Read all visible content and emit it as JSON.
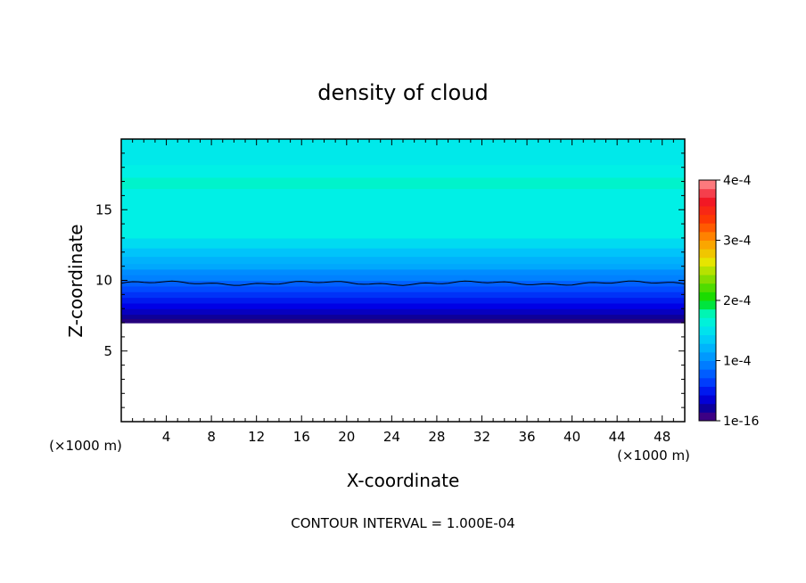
{
  "chart_data": {
    "type": "heatmap",
    "title": "density of cloud",
    "xlabel": "X-coordinate",
    "ylabel": "Z-coordinate",
    "x_unit": "(×1000 m)",
    "y_unit": "(×1000 m)",
    "footer": "CONTOUR INTERVAL = 1.000E-04",
    "xlim": [
      0,
      50
    ],
    "ylim": [
      0,
      20
    ],
    "x_ticks": [
      "4",
      "8",
      "12",
      "16",
      "20",
      "24",
      "28",
      "32",
      "36",
      "40",
      "44",
      "48"
    ],
    "x_tick_values": [
      4,
      8,
      12,
      16,
      20,
      24,
      28,
      32,
      36,
      40,
      44,
      48
    ],
    "y_ticks": [
      "5",
      "10",
      "15"
    ],
    "y_tick_values": [
      5,
      10,
      15
    ],
    "colorbar": {
      "min": 1e-16,
      "max": 0.0004,
      "tick_labels": [
        "1e-16",
        "1e-4",
        "2e-4",
        "3e-4",
        "4e-4"
      ],
      "tick_values": [
        0,
        0.0001,
        0.0002,
        0.0003,
        0.0004
      ]
    },
    "cloud_base_z": 7.0,
    "contour_line": {
      "level": 0.0001,
      "z": 9.8
    },
    "vertical_profile": {
      "z": [
        7.0,
        7.3,
        7.6,
        8.0,
        8.4,
        8.8,
        9.2,
        9.6,
        10.0,
        10.4,
        10.8,
        11.2,
        11.7,
        12.3,
        13.0,
        16.5,
        17.3,
        18.2,
        20.0
      ],
      "value": [
        1e-05,
        2e-05,
        3e-05,
        4e-05,
        5e-05,
        6e-05,
        7e-05,
        8e-05,
        9.5e-05,
        0.0001,
        0.000115,
        0.00012,
        0.00013,
        0.000145,
        0.00016,
        0.00017,
        0.00016,
        0.000155,
        0.00015
      ]
    }
  }
}
